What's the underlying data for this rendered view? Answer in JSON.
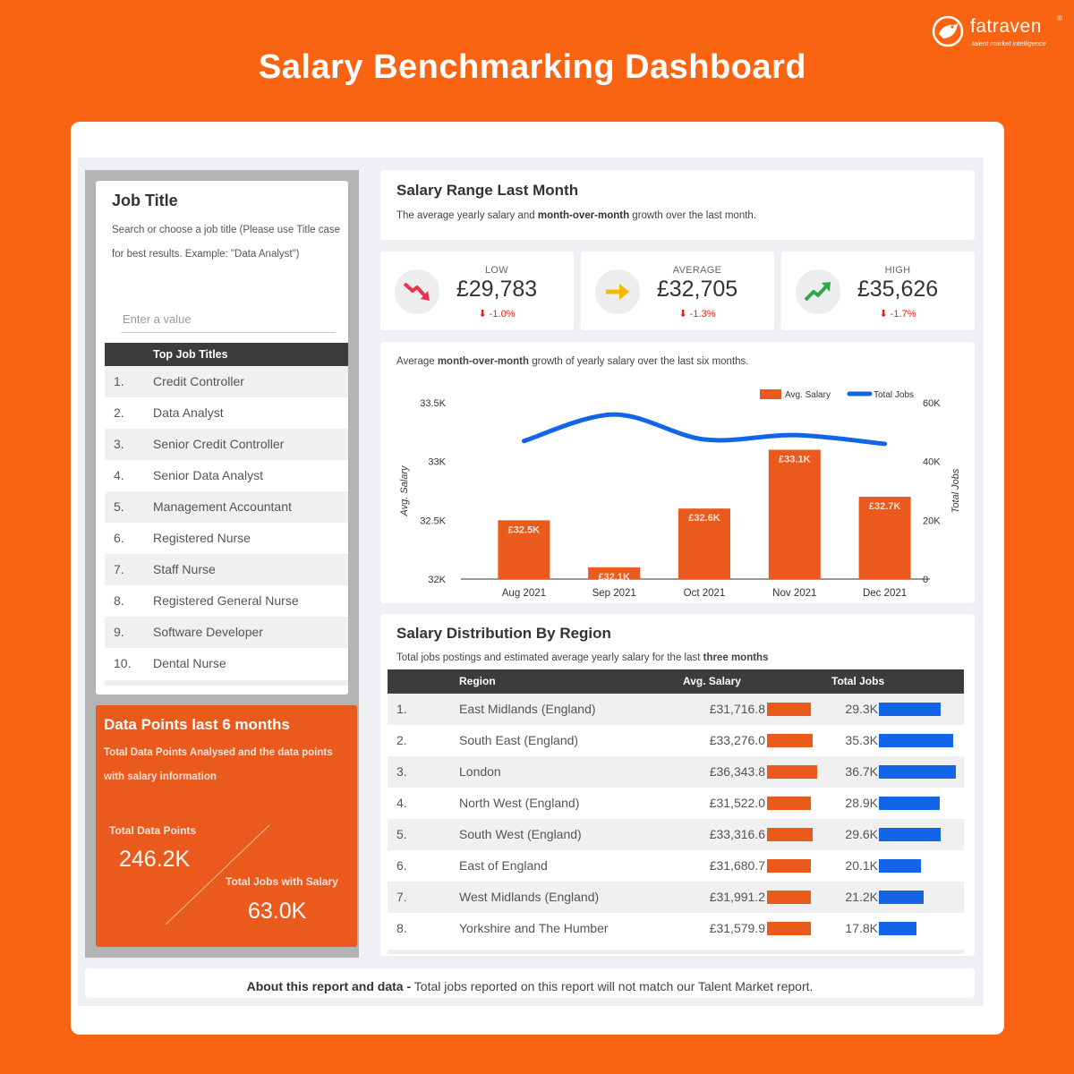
{
  "brand": {
    "name": "fatraven",
    "mark": "®",
    "tagline": "talent market intelligence"
  },
  "page_title": "Salary Benchmarking Dashboard",
  "job_panel": {
    "title": "Job Title",
    "description": "Search or choose a job title (Please use Title case for best results. Example: \"Data Analyst\")",
    "input_placeholder": "Enter a value",
    "table_header": "Top Job Titles",
    "items": [
      {
        "num": "1.",
        "name": "Credit Controller"
      },
      {
        "num": "2.",
        "name": "Data Analyst"
      },
      {
        "num": "3.",
        "name": "Senior Credit Controller"
      },
      {
        "num": "4.",
        "name": "Senior Data Analyst"
      },
      {
        "num": "5.",
        "name": "Management Accountant"
      },
      {
        "num": "6.",
        "name": "Registered Nurse"
      },
      {
        "num": "7.",
        "name": "Staff Nurse"
      },
      {
        "num": "8.",
        "name": "Registered General Nurse"
      },
      {
        "num": "9.",
        "name": "Software Developer"
      },
      {
        "num": "10.",
        "name": "Dental Nurse"
      }
    ]
  },
  "data_points": {
    "title": "Data Points last 6 months",
    "description": "Total Data Points Analysed and the data points with salary information",
    "total_label": "Total Data Points",
    "total_value": "246.2K",
    "salary_label": "Total Jobs with Salary",
    "salary_value": "63.0K"
  },
  "salary_range": {
    "title": "Salary Range Last Month",
    "subtitle_pre": "The average yearly salary and ",
    "subtitle_bold": "month-over-month",
    "subtitle_post": " growth over the last month."
  },
  "kpis": [
    {
      "label": "LOW",
      "value": "£29,783",
      "delta": "-1.0%",
      "delta_arrow": "⬇",
      "icon": "trend-down-icon",
      "color": "#e8334a"
    },
    {
      "label": "AVERAGE",
      "value": "£32,705",
      "delta": "-1.3%",
      "delta_arrow": "⬇",
      "icon": "arrow-right-icon",
      "color": "#f5b800"
    },
    {
      "label": "HIGH",
      "value": "£35,626",
      "delta": "-1.7%",
      "delta_arrow": "⬇",
      "icon": "trend-up-icon",
      "color": "#2ea84a"
    }
  ],
  "chart_caption": {
    "pre": "Average ",
    "bold": "month-over-month",
    "post": " growth of yearly salary over the last six months."
  },
  "chart_data": {
    "type": "bar",
    "categories": [
      "Aug 2021",
      "Sep 2021",
      "Oct 2021",
      "Nov 2021",
      "Dec 2021"
    ],
    "series": [
      {
        "name": "Avg. Salary",
        "type": "bar",
        "axis": "left",
        "color": "#ea5a1c",
        "values": [
          32500,
          32100,
          32600,
          33100,
          32700
        ],
        "labels": [
          "£32.5K",
          "£32.1K",
          "£32.6K",
          "£33.1K",
          "£32.7K"
        ]
      },
      {
        "name": "Total Jobs",
        "type": "line",
        "axis": "right",
        "color": "#1265e6",
        "values": [
          47000,
          56000,
          47500,
          49000,
          46000
        ]
      }
    ],
    "ylabel": "Avg. Salary",
    "y2label": "Total Jobs",
    "ylim": [
      32000,
      33500
    ],
    "y2lim": [
      0,
      60000
    ],
    "yticks": [
      "32K",
      "32.5K",
      "33K",
      "33.5K"
    ],
    "y2ticks": [
      "0",
      "20K",
      "40K",
      "60K"
    ],
    "legend": "top-right",
    "grid": false
  },
  "region": {
    "title": "Salary Distribution By Region",
    "subtitle_pre": "Total jobs postings and estimated average yearly salary for the last ",
    "subtitle_bold": "three months",
    "headers": {
      "region": "Region",
      "salary": "Avg. Salary",
      "jobs": "Total Jobs"
    },
    "salary_max": 36343.8,
    "jobs_max": 36.7,
    "rows": [
      {
        "num": "1.",
        "name": "East Midlands (England)",
        "salary": "£31,716.8",
        "salary_value": 31716.8,
        "jobs": "29.3K",
        "jobs_value": 29.3
      },
      {
        "num": "2.",
        "name": "South East (England)",
        "salary": "£33,276.0",
        "salary_value": 33276.0,
        "jobs": "35.3K",
        "jobs_value": 35.3
      },
      {
        "num": "3.",
        "name": "London",
        "salary": "£36,343.8",
        "salary_value": 36343.8,
        "jobs": "36.7K",
        "jobs_value": 36.7
      },
      {
        "num": "4.",
        "name": "North West (England)",
        "salary": "£31,522.0",
        "salary_value": 31522.0,
        "jobs": "28.9K",
        "jobs_value": 28.9
      },
      {
        "num": "5.",
        "name": "South West (England)",
        "salary": "£33,316.6",
        "salary_value": 33316.6,
        "jobs": "29.6K",
        "jobs_value": 29.6
      },
      {
        "num": "6.",
        "name": "East of England",
        "salary": "£31,680.7",
        "salary_value": 31680.7,
        "jobs": "20.1K",
        "jobs_value": 20.1
      },
      {
        "num": "7.",
        "name": "West Midlands (England)",
        "salary": "£31,991.2",
        "salary_value": 31991.2,
        "jobs": "21.2K",
        "jobs_value": 21.2
      },
      {
        "num": "8.",
        "name": "Yorkshire and The Humber",
        "salary": "£31,579.9",
        "salary_value": 31579.9,
        "jobs": "17.8K",
        "jobs_value": 17.8
      }
    ]
  },
  "about": {
    "bold": "About this report and data -",
    "text": " Total jobs reported on this report will not match our Talent Market report."
  }
}
